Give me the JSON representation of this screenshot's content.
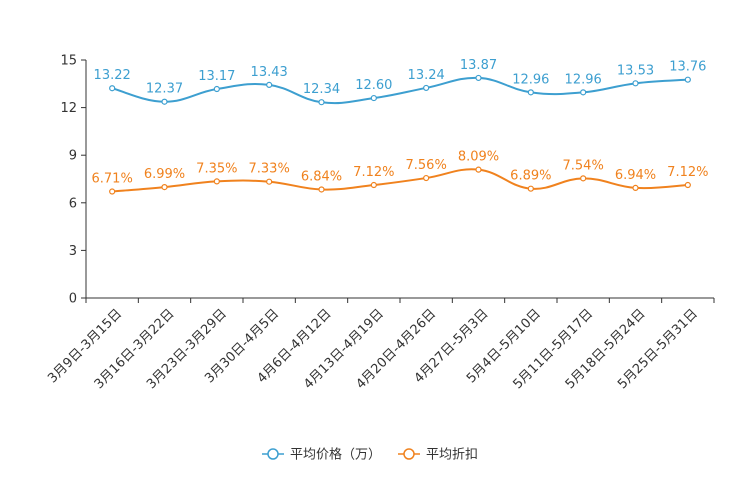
{
  "chart_data": {
    "type": "line",
    "categories": [
      "3月9日-3月15日",
      "3月16日-3月22日",
      "3月23日-3月29日",
      "3月30日-4月5日",
      "4月6日-4月12日",
      "4月13日-4月19日",
      "4月20日-4月26日",
      "4月27日-5月3日",
      "5月4日-5月10日",
      "5月11日-5月17日",
      "5月18日-5月24日",
      "5月25日-5月31日"
    ],
    "ylim": [
      0,
      15
    ],
    "yticks": [
      "0",
      "3",
      "6",
      "9",
      "12",
      "15"
    ],
    "ytick_values": [
      0,
      3,
      6,
      9,
      12,
      15
    ],
    "series": [
      {
        "name": "平均价格（万）",
        "color": "#3d9fd0",
        "values": [
          13.22,
          12.37,
          13.17,
          13.43,
          12.34,
          12.6,
          13.24,
          13.87,
          12.96,
          12.96,
          13.53,
          13.76
        ],
        "labels": [
          "13.22",
          "12.37",
          "13.17",
          "13.43",
          "12.34",
          "12.60",
          "13.24",
          "13.87",
          "12.96",
          "12.96",
          "13.53",
          "13.76"
        ]
      },
      {
        "name": "平均折扣",
        "color": "#f0821e",
        "values": [
          6.71,
          6.99,
          7.35,
          7.33,
          6.84,
          7.12,
          7.56,
          8.09,
          6.89,
          7.54,
          6.94,
          7.12
        ],
        "labels": [
          "6.71%",
          "6.99%",
          "7.35%",
          "7.33%",
          "6.84%",
          "7.12%",
          "7.56%",
          "8.09%",
          "6.89%",
          "7.54%",
          "6.94%",
          "7.12%"
        ]
      }
    ],
    "legend_position": "bottom-center"
  }
}
